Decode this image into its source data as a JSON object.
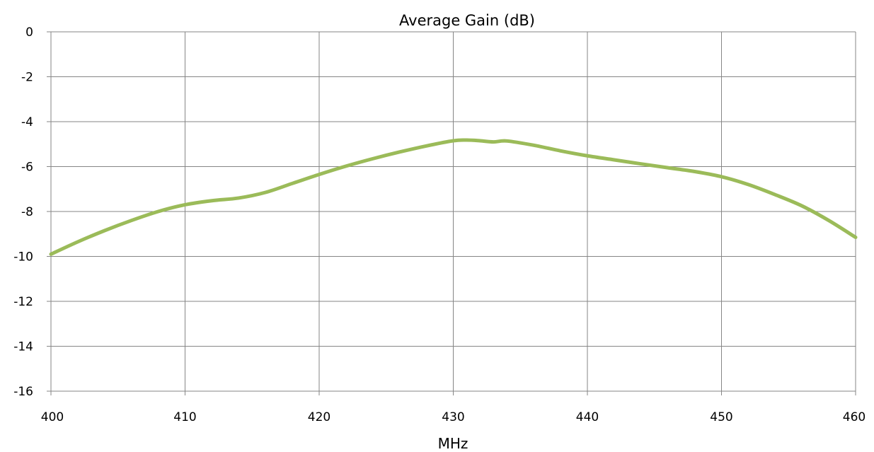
{
  "chart_data": {
    "type": "line",
    "title": "Average Gain (dB)",
    "xlabel": "MHz",
    "ylabel": "",
    "xlim": [
      400,
      460
    ],
    "ylim": [
      -16,
      0
    ],
    "x_ticks": [
      "400",
      "410",
      "420",
      "430",
      "440",
      "450",
      "460"
    ],
    "y_ticks": [
      "0",
      "-2",
      "-4",
      "-6",
      "-8",
      "-10",
      "-12",
      "-14",
      "-16"
    ],
    "grid": true,
    "line_color": "#9bbb59",
    "grid_color": "#868686",
    "series": [
      {
        "x": [
          400,
          402,
          404,
          406,
          408,
          410,
          412,
          414,
          416,
          418,
          420,
          422,
          424,
          426,
          428,
          430,
          431,
          432,
          433,
          434,
          436,
          438,
          440,
          442,
          444,
          446,
          448,
          450,
          452,
          454,
          456,
          458,
          460
        ],
        "values": [
          -9.9,
          -9.35,
          -8.85,
          -8.4,
          -8.0,
          -7.7,
          -7.52,
          -7.4,
          -7.15,
          -6.75,
          -6.35,
          -5.98,
          -5.65,
          -5.35,
          -5.08,
          -4.85,
          -4.82,
          -4.85,
          -4.9,
          -4.86,
          -5.05,
          -5.3,
          -5.52,
          -5.7,
          -5.88,
          -6.05,
          -6.22,
          -6.45,
          -6.8,
          -7.25,
          -7.75,
          -8.4,
          -9.15
        ]
      }
    ]
  }
}
